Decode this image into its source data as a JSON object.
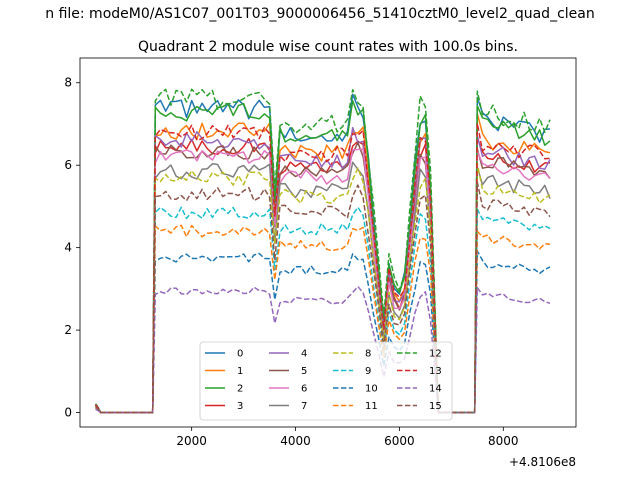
{
  "chart_data": {
    "type": "line",
    "suptitle": "n file: modeM0/AS1C07_001T03_9000006456_51410cztM0_level2_quad_clean",
    "title": "Quadrant 2 module wise count rates with 100.0s bins.",
    "xlabel": "",
    "ylabel": "",
    "offset_label": "+4.8106e8",
    "xlim": [
      -150,
      9400
    ],
    "ylim": [
      -0.35,
      8.6
    ],
    "x_ticks": [
      2000,
      4000,
      6000,
      8000
    ],
    "x_tick_labels": [
      "2000",
      "4000",
      "6000",
      "8000"
    ],
    "y_ticks": [
      0,
      2,
      4,
      6,
      8
    ],
    "y_tick_labels": [
      "0",
      "2",
      "4",
      "6",
      "8"
    ],
    "grid": false,
    "legend": {
      "position": "lower-center",
      "columns": 4
    },
    "segments": [
      {
        "x_start": 150,
        "x_end": 200,
        "step": 50
      },
      {
        "x_start": 250,
        "x_end": 1250,
        "step": 100
      },
      {
        "x_start": 1300,
        "x_end": 6650,
        "step": 100
      },
      {
        "x_start": 6750,
        "x_end": 7450,
        "step": 100
      },
      {
        "x_start": 7500,
        "x_end": 8950,
        "step": 100
      }
    ],
    "series": [
      {
        "name": "0",
        "color": "#1f77b4",
        "dash": "solid",
        "level": 7.35
      },
      {
        "name": "1",
        "color": "#ff7f0e",
        "dash": "solid",
        "level": 6.85
      },
      {
        "name": "2",
        "color": "#2ca02c",
        "dash": "solid",
        "level": 7.3
      },
      {
        "name": "3",
        "color": "#d62728",
        "dash": "solid",
        "level": 6.45
      },
      {
        "name": "4",
        "color": "#9467bd",
        "dash": "solid",
        "level": 6.6
      },
      {
        "name": "5",
        "color": "#8c564b",
        "dash": "solid",
        "level": 6.35
      },
      {
        "name": "6",
        "color": "#e377c2",
        "dash": "solid",
        "level": 6.2
      },
      {
        "name": "7",
        "color": "#7f7f7f",
        "dash": "solid",
        "level": 5.85
      },
      {
        "name": "8",
        "color": "#bcbd22",
        "dash": "dashed",
        "level": 5.7
      },
      {
        "name": "9",
        "color": "#17becf",
        "dash": "dashed",
        "level": 4.85
      },
      {
        "name": "10",
        "color": "#1f77b4",
        "dash": "dashed",
        "level": 3.75
      },
      {
        "name": "11",
        "color": "#ff7f0e",
        "dash": "dashed",
        "level": 4.4
      },
      {
        "name": "12",
        "color": "#2ca02c",
        "dash": "dashed",
        "level": 7.6
      },
      {
        "name": "13",
        "color": "#d62728",
        "dash": "dashed",
        "level": 6.8
      },
      {
        "name": "14",
        "color": "#9467bd",
        "dash": "dashed",
        "level": 2.95
      },
      {
        "name": "15",
        "color": "#8c564b",
        "dash": "dashed",
        "level": 5.3
      }
    ]
  }
}
